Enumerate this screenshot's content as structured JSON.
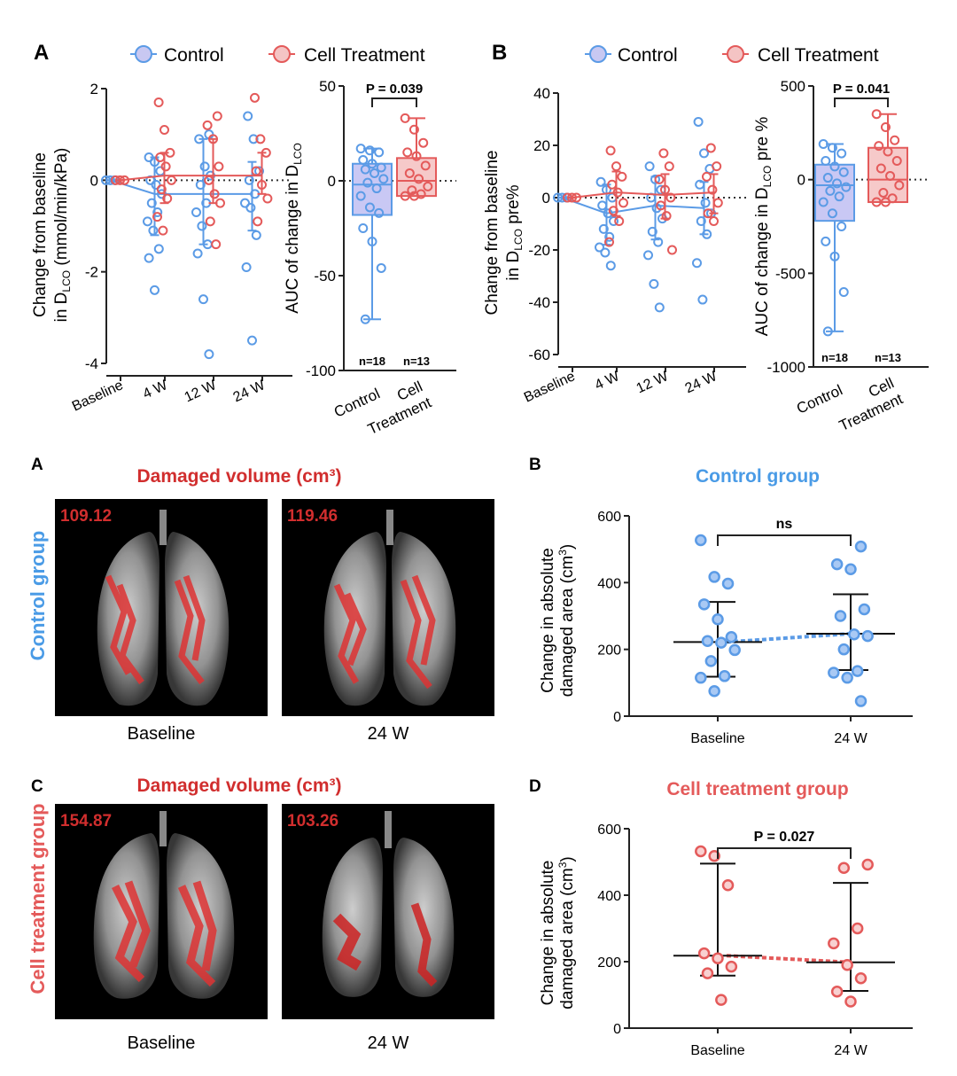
{
  "colors": {
    "control": "#5b9be6",
    "treatment": "#e45a5a",
    "red_title": "#d12e2e",
    "blue_title": "#4a9be6"
  },
  "top_legend": {
    "control": "Control",
    "treatment": "Cell Treatment"
  },
  "panel_letters": {
    "top_a": "A",
    "top_b": "B",
    "mid_a": "A",
    "mid_b": "B",
    "bot_c": "C",
    "bot_d": "D"
  },
  "image_panels": {
    "control": {
      "title": "Damaged volume (cm³)",
      "side_label": "Control group",
      "baseline_value": "109.12",
      "w24_value": "119.46",
      "baseline_caption": "Baseline",
      "w24_caption": "24 W"
    },
    "treatment": {
      "title": "Damaged volume (cm³)",
      "side_label": "Cell treatment group",
      "baseline_value": "154.87",
      "w24_value": "103.26",
      "baseline_caption": "Baseline",
      "w24_caption": "24 W"
    }
  },
  "chart_data": [
    {
      "id": "dlco_time",
      "type": "scatter",
      "ylabel_line1": "Change from baseline",
      "ylabel_line2_pre": "in D",
      "ylabel_sub": "LCO",
      "ylabel_line2_post": " (mmol/min/kPa)",
      "categories": [
        "Baseline",
        "4 W",
        "12 W",
        "24 W"
      ],
      "ylim": [
        -4,
        2
      ],
      "yticks": [
        "2",
        "0",
        "-2",
        "-4"
      ],
      "series": [
        {
          "name": "Control",
          "mean": [
            0,
            -0.3,
            -0.3,
            -0.3
          ],
          "err_low": [
            0,
            -1.2,
            -1.4,
            -1.1
          ],
          "err_high": [
            0,
            0.5,
            0.9,
            0.4
          ],
          "points": [
            [
              0,
              0
            ],
            [
              0,
              0
            ],
            [
              0,
              0
            ],
            [
              1,
              0.5
            ],
            [
              1,
              0.4
            ],
            [
              1,
              0.2
            ],
            [
              1,
              0
            ],
            [
              1,
              -0.1
            ],
            [
              1,
              -0.3
            ],
            [
              1,
              -0.5
            ],
            [
              1,
              -0.7
            ],
            [
              1,
              -0.9
            ],
            [
              1,
              -1.1
            ],
            [
              1,
              -1.5
            ],
            [
              1,
              -1.7
            ],
            [
              1,
              -2.4
            ],
            [
              2,
              1.0
            ],
            [
              2,
              0.9
            ],
            [
              2,
              0.3
            ],
            [
              2,
              0.1
            ],
            [
              2,
              -0.1
            ],
            [
              2,
              -0.5
            ],
            [
              2,
              -0.7
            ],
            [
              2,
              -1.0
            ],
            [
              2,
              -1.4
            ],
            [
              2,
              -1.6
            ],
            [
              2,
              -2.6
            ],
            [
              2,
              -3.8
            ],
            [
              3,
              1.4
            ],
            [
              3,
              0.9
            ],
            [
              3,
              0.2
            ],
            [
              3,
              0
            ],
            [
              3,
              -0.3
            ],
            [
              3,
              -0.5
            ],
            [
              3,
              -0.6
            ],
            [
              3,
              -1.2
            ],
            [
              3,
              -1.9
            ],
            [
              3,
              -3.5
            ]
          ]
        },
        {
          "name": "Cell Treatment",
          "mean": [
            0,
            0.1,
            0.1,
            0.1
          ],
          "err_low": [
            0,
            -0.5,
            -0.5,
            -0.3
          ],
          "err_high": [
            0,
            0.6,
            0.9,
            0.6
          ],
          "points": [
            [
              0,
              0
            ],
            [
              0,
              0
            ],
            [
              0,
              0
            ],
            [
              1,
              1.7
            ],
            [
              1,
              1.1
            ],
            [
              1,
              0.6
            ],
            [
              1,
              0.5
            ],
            [
              1,
              0.3
            ],
            [
              1,
              0
            ],
            [
              1,
              -0.2
            ],
            [
              1,
              -0.4
            ],
            [
              1,
              -0.8
            ],
            [
              1,
              -1.1
            ],
            [
              2,
              1.4
            ],
            [
              2,
              1.2
            ],
            [
              2,
              0.9
            ],
            [
              2,
              0.3
            ],
            [
              2,
              0
            ],
            [
              2,
              -0.3
            ],
            [
              2,
              -0.5
            ],
            [
              2,
              -0.9
            ],
            [
              2,
              -1.4
            ],
            [
              3,
              1.8
            ],
            [
              3,
              0.9
            ],
            [
              3,
              0.6
            ],
            [
              3,
              0.2
            ],
            [
              3,
              -0.1
            ],
            [
              3,
              -0.4
            ],
            [
              3,
              -0.9
            ]
          ]
        }
      ]
    },
    {
      "id": "dlco_auc",
      "type": "box",
      "ylabel_pre": "AUC of change in D",
      "ylabel_sub": "LCO",
      "categories": [
        "Control",
        "Cell",
        "Treatment"
      ],
      "ylim": [
        -100,
        50
      ],
      "yticks": [
        "50",
        "0",
        "-50",
        "-100"
      ],
      "p_value": "P = 0.039",
      "n_labels": [
        "n=18",
        "n=13"
      ],
      "boxes": [
        {
          "name": "Control",
          "q1": -18,
          "median": -2,
          "q3": 9,
          "min": -73,
          "max": 17,
          "points": [
            17,
            16,
            15,
            11,
            9,
            7,
            6,
            4,
            1,
            -1,
            -4,
            -8,
            -14,
            -17,
            -25,
            -32,
            -46,
            -73
          ]
        },
        {
          "name": "Cell Treatment",
          "q1": -8,
          "median": 0,
          "q3": 12,
          "min": -8,
          "max": 33,
          "points": [
            33,
            27,
            20,
            15,
            13,
            8,
            4,
            1,
            -3,
            -5,
            -7,
            -8,
            -8
          ]
        }
      ]
    },
    {
      "id": "dlco_pct_time",
      "type": "scatter",
      "ylabel_line1": "Change from baseline",
      "ylabel_line2_pre": "in D",
      "ylabel_sub": "LCO",
      "ylabel_line2_post": " pre%",
      "categories": [
        "Baseline",
        "4 W",
        "12 W",
        "24 W"
      ],
      "ylim": [
        -60,
        40
      ],
      "yticks": [
        "40",
        "20",
        "0",
        "-20",
        "-40",
        "-60"
      ],
      "series": [
        {
          "name": "Control",
          "mean": [
            0,
            -6,
            -3,
            -4
          ],
          "err_low": [
            0,
            -18,
            -16,
            -14
          ],
          "err_high": [
            0,
            5,
            8,
            6
          ],
          "points": [
            [
              0,
              0
            ],
            [
              0,
              0
            ],
            [
              0,
              0
            ],
            [
              1,
              6
            ],
            [
              1,
              3
            ],
            [
              1,
              0
            ],
            [
              1,
              -3
            ],
            [
              1,
              -6
            ],
            [
              1,
              -9
            ],
            [
              1,
              -12
            ],
            [
              1,
              -15
            ],
            [
              1,
              -19
            ],
            [
              1,
              -21
            ],
            [
              1,
              -26
            ],
            [
              2,
              12
            ],
            [
              2,
              7
            ],
            [
              2,
              3
            ],
            [
              2,
              0
            ],
            [
              2,
              -4
            ],
            [
              2,
              -8
            ],
            [
              2,
              -13
            ],
            [
              2,
              -17
            ],
            [
              2,
              -22
            ],
            [
              2,
              -33
            ],
            [
              2,
              -42
            ],
            [
              3,
              29
            ],
            [
              3,
              17
            ],
            [
              3,
              11
            ],
            [
              3,
              5
            ],
            [
              3,
              -2
            ],
            [
              3,
              -6
            ],
            [
              3,
              -9
            ],
            [
              3,
              -14
            ],
            [
              3,
              -25
            ],
            [
              3,
              -39
            ]
          ]
        },
        {
          "name": "Cell Treatment",
          "mean": [
            0,
            2,
            1,
            2
          ],
          "err_low": [
            0,
            -7,
            -8,
            -6
          ],
          "err_high": [
            0,
            10,
            9,
            9
          ],
          "points": [
            [
              0,
              0
            ],
            [
              0,
              0
            ],
            [
              0,
              0
            ],
            [
              1,
              18
            ],
            [
              1,
              12
            ],
            [
              1,
              8
            ],
            [
              1,
              5
            ],
            [
              1,
              2
            ],
            [
              1,
              -2
            ],
            [
              1,
              -5
            ],
            [
              1,
              -9
            ],
            [
              1,
              -17
            ],
            [
              2,
              17
            ],
            [
              2,
              12
            ],
            [
              2,
              7
            ],
            [
              2,
              3
            ],
            [
              2,
              0
            ],
            [
              2,
              -3
            ],
            [
              2,
              -7
            ],
            [
              2,
              -20
            ],
            [
              3,
              19
            ],
            [
              3,
              12
            ],
            [
              3,
              8
            ],
            [
              3,
              3
            ],
            [
              3,
              -2
            ],
            [
              3,
              -6
            ],
            [
              3,
              -9
            ]
          ]
        }
      ]
    },
    {
      "id": "dlco_pct_auc",
      "type": "box",
      "ylabel_pre": "AUC of change in D",
      "ylabel_sub": "LCO",
      "ylabel_post": " pre %",
      "categories": [
        "Control",
        "Cell",
        "Treatment"
      ],
      "ylim": [
        -1000,
        500
      ],
      "yticks": [
        "500",
        "0",
        "-500",
        "-1000"
      ],
      "p_value": "P = 0.041",
      "n_labels": [
        "n=18",
        "n=13"
      ],
      "boxes": [
        {
          "name": "Control",
          "q1": -220,
          "median": -30,
          "q3": 80,
          "min": -810,
          "max": 190,
          "points": [
            190,
            170,
            140,
            100,
            70,
            40,
            10,
            -20,
            -40,
            -60,
            -90,
            -120,
            -180,
            -250,
            -330,
            -410,
            -600,
            -810
          ]
        },
        {
          "name": "Cell Treatment",
          "q1": -120,
          "median": 0,
          "q3": 170,
          "min": -120,
          "max": 350,
          "points": [
            350,
            280,
            210,
            180,
            150,
            100,
            60,
            20,
            -30,
            -70,
            -100,
            -120,
            -120
          ]
        }
      ]
    },
    {
      "id": "control_damaged",
      "type": "scatter",
      "title": "Control group",
      "ylabel_line1": "Change in absolute",
      "ylabel_line2": "damaged area (cm",
      "ylabel_sup": "3",
      "ylabel_end": ")",
      "categories": [
        "Baseline",
        "24 W"
      ],
      "ylim": [
        0,
        600
      ],
      "yticks": [
        "600",
        "400",
        "200",
        "0"
      ],
      "annotation": "ns",
      "mean": [
        222,
        247
      ],
      "sd_low": [
        118,
        138
      ],
      "sd_high": [
        342,
        365
      ],
      "points": [
        [
          0,
          527
        ],
        [
          0,
          417
        ],
        [
          0,
          397
        ],
        [
          0,
          335
        ],
        [
          0,
          290
        ],
        [
          0,
          237
        ],
        [
          0,
          225
        ],
        [
          0,
          220
        ],
        [
          0,
          198
        ],
        [
          0,
          165
        ],
        [
          0,
          120
        ],
        [
          0,
          115
        ],
        [
          0,
          75
        ],
        [
          1,
          508
        ],
        [
          1,
          455
        ],
        [
          1,
          440
        ],
        [
          1,
          320
        ],
        [
          1,
          300
        ],
        [
          1,
          245
        ],
        [
          1,
          240
        ],
        [
          1,
          200
        ],
        [
          1,
          135
        ],
        [
          1,
          130
        ],
        [
          1,
          115
        ],
        [
          1,
          45
        ]
      ]
    },
    {
      "id": "treatment_damaged",
      "type": "scatter",
      "title": "Cell treatment group",
      "ylabel_line1": "Change in absolute",
      "ylabel_line2": "damaged area (cm",
      "ylabel_sup": "3",
      "ylabel_end": ")",
      "categories": [
        "Baseline",
        "24 W"
      ],
      "ylim": [
        0,
        600
      ],
      "yticks": [
        "600",
        "400",
        "200",
        "0"
      ],
      "annotation": "P = 0.027",
      "mean": [
        218,
        198
      ],
      "sd_low": [
        158,
        112
      ],
      "sd_high": [
        495,
        437
      ],
      "points": [
        [
          0,
          532
        ],
        [
          0,
          518
        ],
        [
          0,
          430
        ],
        [
          0,
          225
        ],
        [
          0,
          210
        ],
        [
          0,
          185
        ],
        [
          0,
          165
        ],
        [
          0,
          85
        ],
        [
          1,
          492
        ],
        [
          1,
          482
        ],
        [
          1,
          300
        ],
        [
          1,
          255
        ],
        [
          1,
          190
        ],
        [
          1,
          150
        ],
        [
          1,
          110
        ],
        [
          1,
          80
        ]
      ]
    }
  ]
}
